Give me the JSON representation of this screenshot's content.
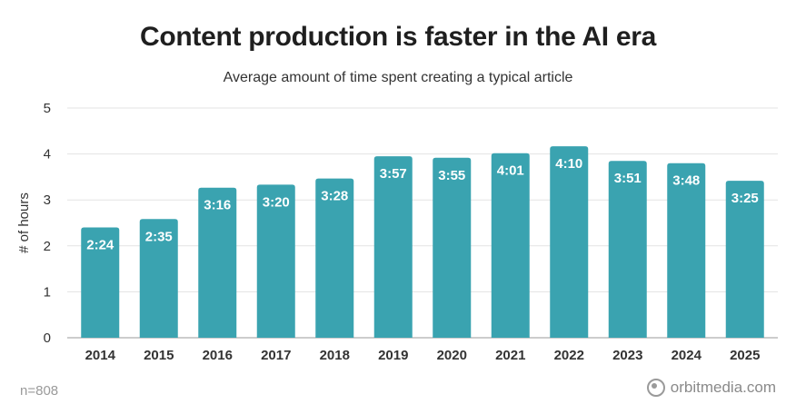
{
  "chart_data": {
    "type": "bar",
    "title": "Content production is faster in the AI era",
    "subtitle": "Average amount of time spent creating a typical article",
    "ylabel": "# of hours",
    "xlabel": "",
    "ylim": [
      0,
      5
    ],
    "yticks": [
      0,
      1,
      2,
      3,
      4,
      5
    ],
    "grid": true,
    "color": "#3aa3b0",
    "categories": [
      "2014",
      "2015",
      "2016",
      "2017",
      "2018",
      "2019",
      "2020",
      "2021",
      "2022",
      "2023",
      "2024",
      "2025"
    ],
    "values": [
      2.4,
      2.583,
      3.267,
      3.333,
      3.467,
      3.95,
      3.917,
      4.017,
      4.167,
      3.85,
      3.8,
      3.417
    ],
    "data_labels": [
      "2:24",
      "2:35",
      "3:16",
      "3:20",
      "3:28",
      "3:57",
      "3:55",
      "4:01",
      "4:10",
      "3:51",
      "3:48",
      "3:25"
    ]
  },
  "footnote": "n=808",
  "brand": {
    "logo_icon": "orbit-logo-icon",
    "text": "orbitmedia.com"
  }
}
